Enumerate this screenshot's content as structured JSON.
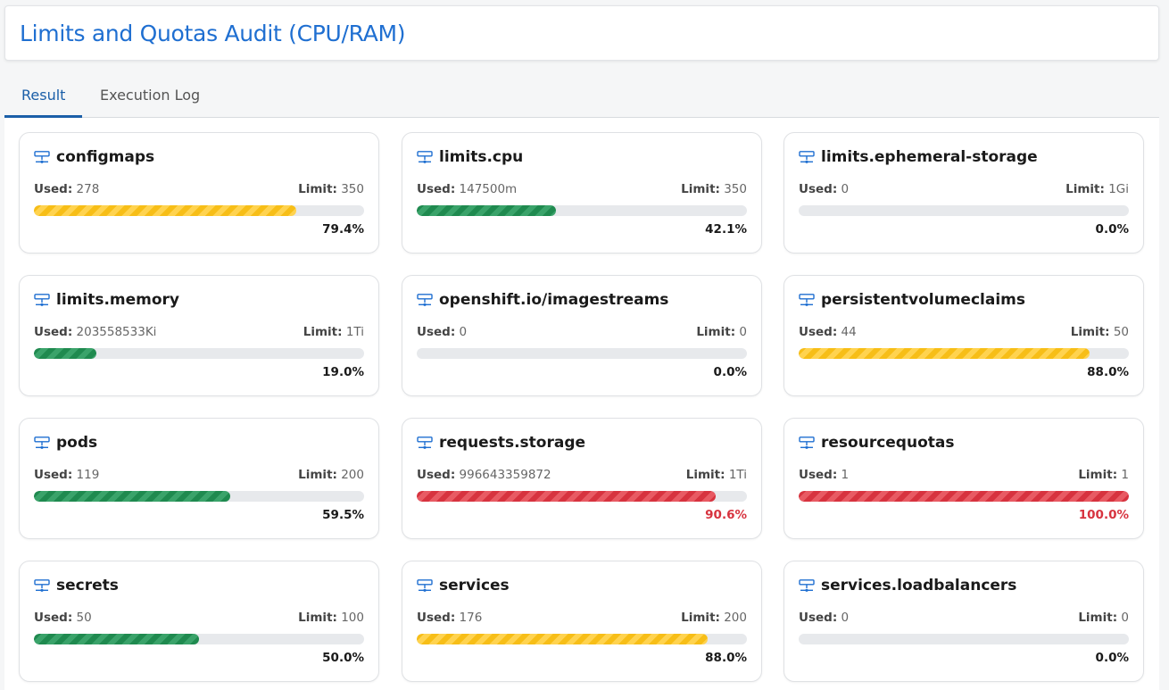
{
  "header": {
    "title": "Limits and Quotas Audit (CPU/RAM)"
  },
  "tabs": [
    {
      "label": "Result",
      "active": true
    },
    {
      "label": "Execution Log",
      "active": false
    }
  ],
  "labels": {
    "used": "Used:",
    "limit": "Limit:"
  },
  "colors": {
    "accent": "#1b5fa8",
    "title": "#1f6fd1",
    "ok": "#1f8a4f",
    "warn": "#f7be17",
    "danger": "#d7333f"
  },
  "cards": [
    {
      "name": "configmaps",
      "icon": "server-network-icon",
      "used": "278",
      "limit": "350",
      "percent": "79.4%",
      "fraction": 0.794,
      "status": "yellow"
    },
    {
      "name": "limits.cpu",
      "icon": "server-network-icon",
      "used": "147500m",
      "limit": "350",
      "percent": "42.1%",
      "fraction": 0.421,
      "status": "green"
    },
    {
      "name": "limits.ephemeral-storage",
      "icon": "server-network-icon",
      "used": "0",
      "limit": "1Gi",
      "percent": "0.0%",
      "fraction": 0.0,
      "status": "green"
    },
    {
      "name": "limits.memory",
      "icon": "server-network-icon",
      "used": "203558533Ki",
      "limit": "1Ti",
      "percent": "19.0%",
      "fraction": 0.19,
      "status": "green"
    },
    {
      "name": "openshift.io/imagestreams",
      "icon": "server-network-icon",
      "used": "0",
      "limit": "0",
      "percent": "0.0%",
      "fraction": 0.0,
      "status": "green"
    },
    {
      "name": "persistentvolumeclaims",
      "icon": "server-network-icon",
      "used": "44",
      "limit": "50",
      "percent": "88.0%",
      "fraction": 0.88,
      "status": "yellow"
    },
    {
      "name": "pods",
      "icon": "server-network-icon",
      "used": "119",
      "limit": "200",
      "percent": "59.5%",
      "fraction": 0.595,
      "status": "green"
    },
    {
      "name": "requests.storage",
      "icon": "server-network-icon",
      "used": "996643359872",
      "limit": "1Ti",
      "percent": "90.6%",
      "fraction": 0.906,
      "status": "red"
    },
    {
      "name": "resourcequotas",
      "icon": "server-network-icon",
      "used": "1",
      "limit": "1",
      "percent": "100.0%",
      "fraction": 1.0,
      "status": "red"
    },
    {
      "name": "secrets",
      "icon": "server-network-icon",
      "used": "50",
      "limit": "100",
      "percent": "50.0%",
      "fraction": 0.5,
      "status": "green"
    },
    {
      "name": "services",
      "icon": "server-network-icon",
      "used": "176",
      "limit": "200",
      "percent": "88.0%",
      "fraction": 0.88,
      "status": "yellow"
    },
    {
      "name": "services.loadbalancers",
      "icon": "server-network-icon",
      "used": "0",
      "limit": "0",
      "percent": "0.0%",
      "fraction": 0.0,
      "status": "green"
    }
  ]
}
